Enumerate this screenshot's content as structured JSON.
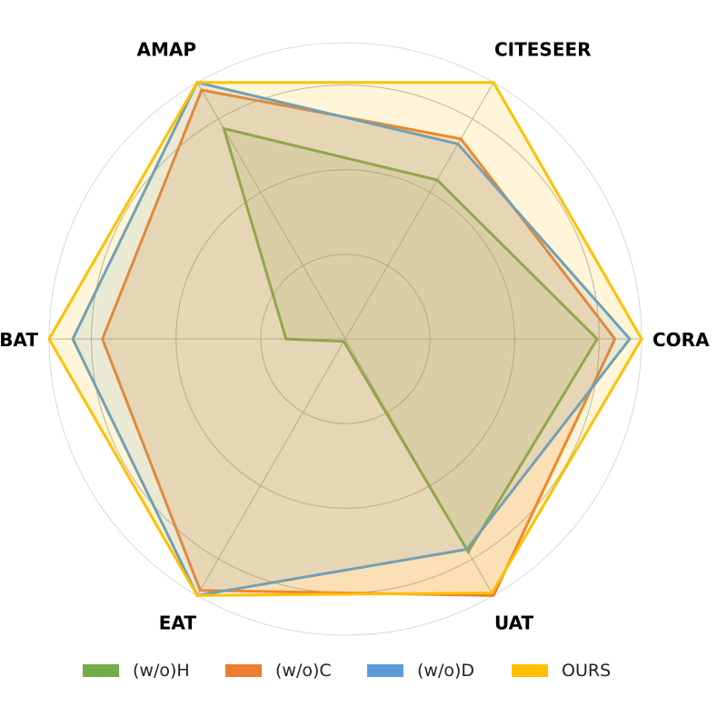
{
  "chart_data": {
    "type": "radar",
    "axes": [
      "CORA",
      "CITESEER",
      "AMAP",
      "BAT",
      "EAT",
      "UAT"
    ],
    "rlim": [
      0,
      1
    ],
    "grid": true,
    "legend_position": "bottom",
    "series": [
      {
        "name": "(w/o)H",
        "color": "#70ad47",
        "fill_opacity": 0.15,
        "values": [
          0.85,
          0.62,
          0.82,
          0.2,
          0.01,
          0.83
        ]
      },
      {
        "name": "(w/o)C",
        "color": "#ed7d31",
        "fill_opacity": 0.2,
        "values": [
          0.91,
          0.78,
          0.97,
          0.82,
          0.98,
          1.0
        ]
      },
      {
        "name": "(w/o)D",
        "color": "#5b9bd5",
        "fill_opacity": 0.15,
        "values": [
          0.96,
          0.76,
          1.0,
          0.92,
          1.0,
          0.82
        ]
      },
      {
        "name": "OURS",
        "color": "#ffc000",
        "fill_opacity": 0.15,
        "values": [
          1.0,
          1.0,
          1.0,
          1.0,
          1.0,
          0.99
        ]
      }
    ]
  }
}
